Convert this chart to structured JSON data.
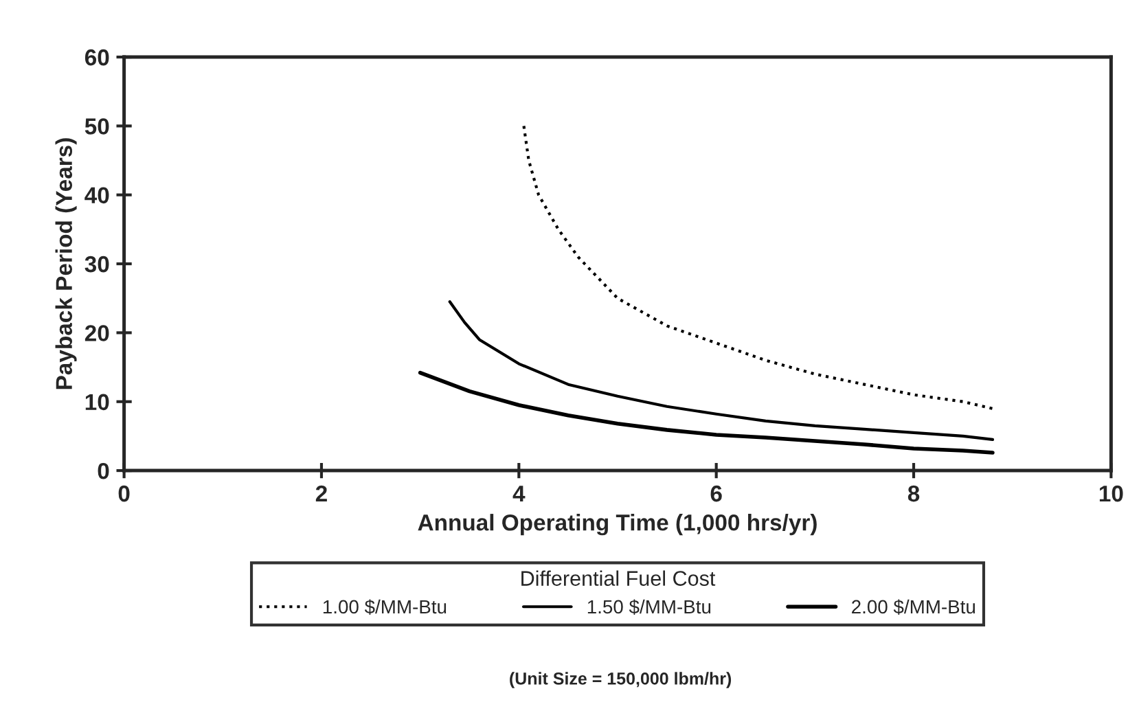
{
  "chart_data": {
    "type": "line",
    "xlabel": "Annual Operating Time (1,000 hrs/yr)",
    "ylabel": "Payback Period (Years)",
    "legend_title": "Differential Fuel Cost",
    "legend": "bottom",
    "grid": false,
    "marker": "none",
    "xlim": [
      0,
      10
    ],
    "xticks": [
      0,
      2,
      4,
      6,
      8,
      10
    ],
    "ylim": [
      0,
      60
    ],
    "yticks": [
      0,
      10,
      20,
      30,
      40,
      50,
      60
    ],
    "series": [
      {
        "name": "1.00 $/MM-Btu",
        "color": "#000000",
        "line_style": "dotted",
        "x": [
          4.05,
          4.1,
          4.2,
          4.4,
          4.6,
          5.0,
          5.5,
          6.0,
          6.5,
          7.0,
          7.5,
          8.0,
          8.5,
          8.8
        ],
        "values": [
          50,
          45,
          40,
          35,
          31,
          25,
          21,
          18.5,
          16,
          14,
          12.5,
          11,
          10,
          9
        ]
      },
      {
        "name": "1.50 $/MM-Btu",
        "color": "#000000",
        "line_style": "solid",
        "x": [
          3.3,
          3.45,
          3.6,
          4.0,
          4.5,
          5.0,
          5.5,
          6.0,
          6.5,
          7.0,
          7.5,
          8.0,
          8.5,
          8.8
        ],
        "values": [
          24.5,
          21.5,
          19,
          15.5,
          12.5,
          10.8,
          9.3,
          8.2,
          7.2,
          6.5,
          6,
          5.5,
          5,
          4.5
        ]
      },
      {
        "name": "2.00 $/MM-Btu",
        "color": "#000000",
        "line_style": "solid",
        "x": [
          3.0,
          3.5,
          4.0,
          4.5,
          5.0,
          5.5,
          6.0,
          6.5,
          7.0,
          7.5,
          8.0,
          8.5,
          8.8
        ],
        "values": [
          14.2,
          11.5,
          9.5,
          8,
          6.8,
          5.9,
          5.2,
          4.8,
          4.3,
          3.8,
          3.2,
          2.9,
          2.6
        ]
      }
    ],
    "annotations": [
      "(Unit Size = 150,000 lbm/hr)"
    ]
  }
}
